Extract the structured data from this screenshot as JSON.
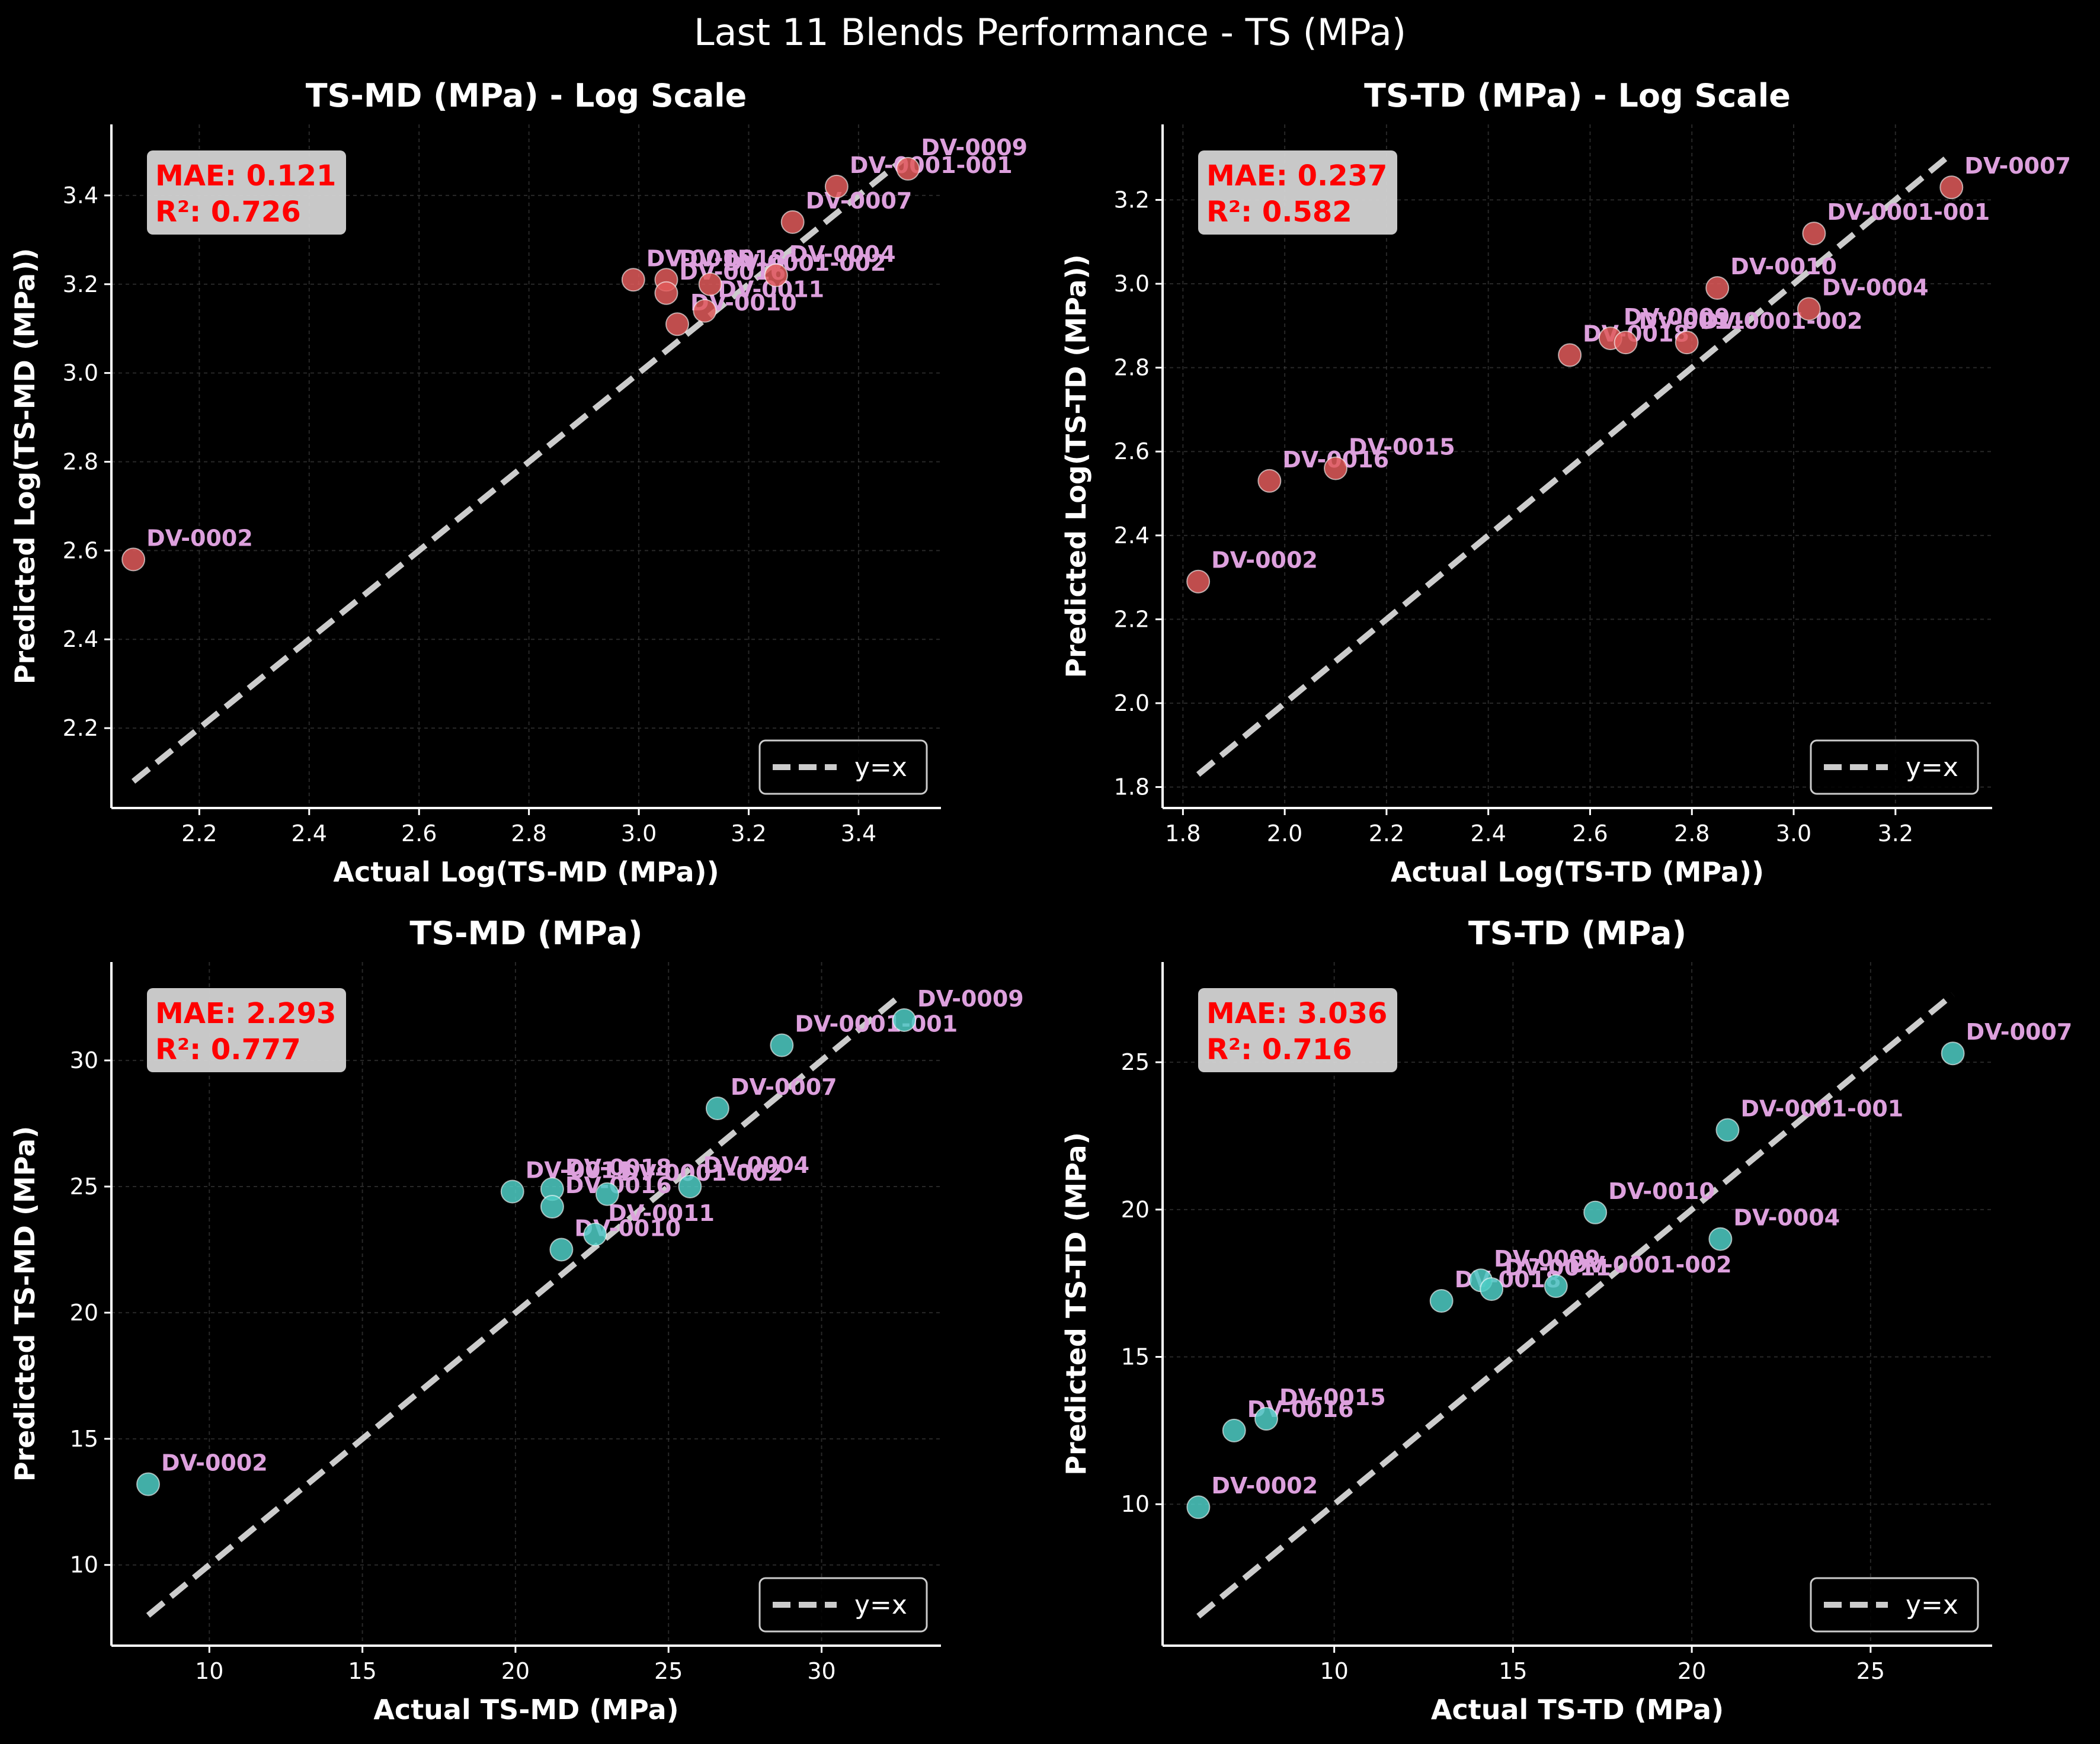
{
  "suptitle": "Last 11 Blends Performance - TS (MPa)",
  "chart_data": [
    {
      "type": "scatter",
      "title": "TS-MD (MPa) - Log Scale",
      "xlabel": "Actual Log(TS-MD (MPa))",
      "ylabel": "Predicted Log(TS-MD (MPa))",
      "xlim": [
        2.04,
        3.55
      ],
      "ylim": [
        2.02,
        3.56
      ],
      "xticks": [
        2.2,
        2.4,
        2.6,
        2.8,
        3.0,
        3.2,
        3.4
      ],
      "yticks": [
        2.2,
        2.4,
        2.6,
        2.8,
        3.0,
        3.2,
        3.4
      ],
      "point_color": "#e05a5a",
      "stats": {
        "mae": "MAE: 0.121",
        "r2": "R²: 0.726"
      },
      "legend": {
        "label": "y=x",
        "position": "lower right"
      },
      "identity_line": [
        2.08,
        3.48
      ],
      "points": [
        {
          "label": "DV-0002",
          "x": 2.08,
          "y": 2.58
        },
        {
          "label": "DV-0015",
          "x": 2.99,
          "y": 3.21
        },
        {
          "label": "DV-0018",
          "x": 3.05,
          "y": 3.21
        },
        {
          "label": "DV-0016",
          "x": 3.05,
          "y": 3.18
        },
        {
          "label": "DV-0010",
          "x": 3.07,
          "y": 3.11
        },
        {
          "label": "DV-0011",
          "x": 3.12,
          "y": 3.14
        },
        {
          "label": "DV-0001-002",
          "x": 3.13,
          "y": 3.2
        },
        {
          "label": "DV-0004",
          "x": 3.25,
          "y": 3.22
        },
        {
          "label": "DV-0007",
          "x": 3.28,
          "y": 3.34
        },
        {
          "label": "DV-0001-001",
          "x": 3.36,
          "y": 3.42
        },
        {
          "label": "DV-0009",
          "x": 3.49,
          "y": 3.46
        }
      ]
    },
    {
      "type": "scatter",
      "title": "TS-TD (MPa) - Log Scale",
      "xlabel": "Actual Log(TS-TD (MPa))",
      "ylabel": "Predicted Log(TS-TD (MPa))",
      "xlim": [
        1.76,
        3.39
      ],
      "ylim": [
        1.75,
        3.38
      ],
      "xticks": [
        1.8,
        2.0,
        2.2,
        2.4,
        2.6,
        2.8,
        3.0,
        3.2
      ],
      "yticks": [
        1.8,
        2.0,
        2.2,
        2.4,
        2.6,
        2.8,
        3.0,
        3.2
      ],
      "point_color": "#e05a5a",
      "stats": {
        "mae": "MAE: 0.237",
        "r2": "R²: 0.582"
      },
      "legend": {
        "label": "y=x",
        "position": "lower right"
      },
      "identity_line": [
        1.83,
        3.31
      ],
      "points": [
        {
          "label": "DV-0002",
          "x": 1.83,
          "y": 2.29
        },
        {
          "label": "DV-0016",
          "x": 1.97,
          "y": 2.53
        },
        {
          "label": "DV-0015",
          "x": 2.1,
          "y": 2.56
        },
        {
          "label": "DV-0018",
          "x": 2.56,
          "y": 2.83
        },
        {
          "label": "DV-0009",
          "x": 2.64,
          "y": 2.87
        },
        {
          "label": "DV-0011",
          "x": 2.67,
          "y": 2.86
        },
        {
          "label": "DV-0001-002",
          "x": 2.79,
          "y": 2.86
        },
        {
          "label": "DV-0010",
          "x": 2.85,
          "y": 2.99
        },
        {
          "label": "DV-0004",
          "x": 3.03,
          "y": 2.94
        },
        {
          "label": "DV-0001-001",
          "x": 3.04,
          "y": 3.12
        },
        {
          "label": "DV-0007",
          "x": 3.31,
          "y": 3.23
        }
      ]
    },
    {
      "type": "scatter",
      "title": "TS-MD (MPa)",
      "xlabel": "Actual TS-MD (MPa)",
      "ylabel": "Predicted TS-MD (MPa)",
      "xlim": [
        6.8,
        33.9
      ],
      "ylim": [
        6.8,
        33.9
      ],
      "xticks": [
        10,
        15,
        20,
        25,
        30
      ],
      "yticks": [
        10,
        15,
        20,
        25,
        30
      ],
      "point_color": "#4ecdc4",
      "stats": {
        "mae": "MAE: 2.293",
        "r2": "R²: 0.777"
      },
      "legend": {
        "label": "y=x",
        "position": "lower right"
      },
      "identity_line": [
        8.0,
        32.6
      ],
      "points": [
        {
          "label": "DV-0002",
          "x": 8.0,
          "y": 13.2
        },
        {
          "label": "DV-0015",
          "x": 19.9,
          "y": 24.8
        },
        {
          "label": "DV-0018",
          "x": 21.2,
          "y": 24.9
        },
        {
          "label": "DV-0016",
          "x": 21.2,
          "y": 24.2
        },
        {
          "label": "DV-0010",
          "x": 21.5,
          "y": 22.5
        },
        {
          "label": "DV-0011",
          "x": 22.6,
          "y": 23.1
        },
        {
          "label": "DV-0001-002",
          "x": 23.0,
          "y": 24.7
        },
        {
          "label": "DV-0004",
          "x": 25.7,
          "y": 25.0
        },
        {
          "label": "DV-0007",
          "x": 26.6,
          "y": 28.1
        },
        {
          "label": "DV-0001-001",
          "x": 28.7,
          "y": 30.6
        },
        {
          "label": "DV-0009",
          "x": 32.7,
          "y": 31.6
        }
      ]
    },
    {
      "type": "scatter",
      "title": "TS-TD (MPa)",
      "xlabel": "Actual TS-TD (MPa)",
      "ylabel": "Predicted TS-TD (MPa)",
      "xlim": [
        5.2,
        28.4
      ],
      "ylim": [
        5.2,
        28.4
      ],
      "xticks": [
        10,
        15,
        20,
        25
      ],
      "yticks": [
        10,
        15,
        20,
        25
      ],
      "point_color": "#4ecdc4",
      "stats": {
        "mae": "MAE: 3.036",
        "r2": "R²: 0.716"
      },
      "legend": {
        "label": "y=x",
        "position": "lower right"
      },
      "identity_line": [
        6.2,
        27.3
      ],
      "points": [
        {
          "label": "DV-0002",
          "x": 6.2,
          "y": 9.9
        },
        {
          "label": "DV-0016",
          "x": 7.2,
          "y": 12.5
        },
        {
          "label": "DV-0015",
          "x": 8.1,
          "y": 12.9
        },
        {
          "label": "DV-0018",
          "x": 13.0,
          "y": 16.9
        },
        {
          "label": "DV-0009",
          "x": 14.1,
          "y": 17.6
        },
        {
          "label": "DV-0011",
          "x": 14.4,
          "y": 17.3
        },
        {
          "label": "DV-0001-002",
          "x": 16.2,
          "y": 17.4
        },
        {
          "label": "DV-0010",
          "x": 17.3,
          "y": 19.9
        },
        {
          "label": "DV-0004",
          "x": 20.8,
          "y": 19.0
        },
        {
          "label": "DV-0001-001",
          "x": 21.0,
          "y": 22.7
        },
        {
          "label": "DV-0007",
          "x": 27.3,
          "y": 25.3
        }
      ]
    }
  ]
}
